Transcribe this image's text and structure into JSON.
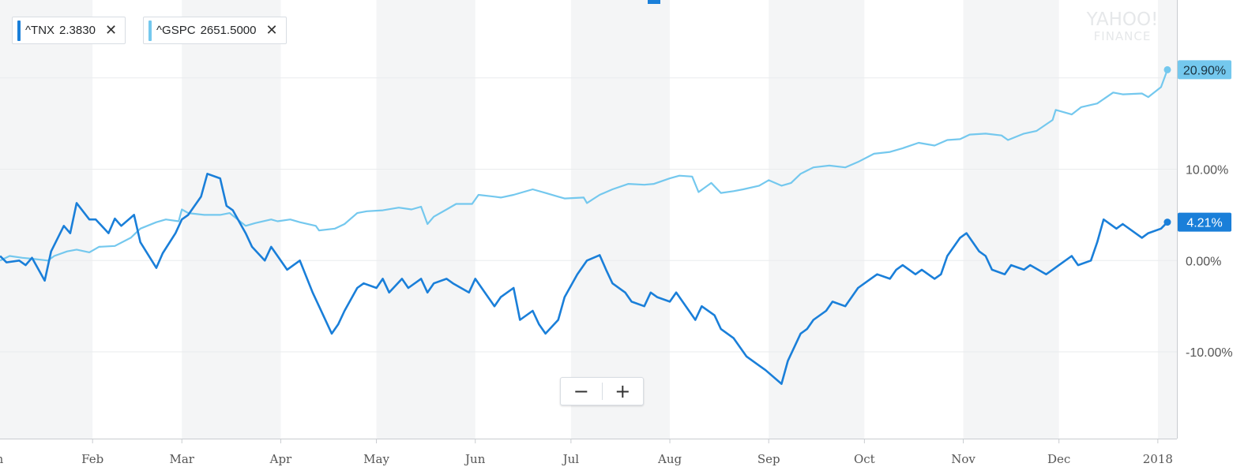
{
  "watermark": {
    "line1": "YAHOO!",
    "line2": "FINANCE"
  },
  "chips": [
    {
      "symbol": "^TNX",
      "price": "2.3830",
      "color": "#1a7fd9",
      "close_icon": "close-icon"
    },
    {
      "symbol": "^GSPC",
      "price": "2651.5000",
      "color": "#74c8ee",
      "close_icon": "close-icon"
    }
  ],
  "zoom": {
    "out_label": "−",
    "in_label": "+",
    "out_icon": "minus-icon",
    "in_icon": "plus-icon"
  },
  "colors": {
    "tnx": "#1a7fd9",
    "gspc": "#74c8ee",
    "band": "#f4f5f6",
    "grid": "#e9ebed",
    "axis_text": "#555555",
    "accent_top": "#1a7fd9"
  },
  "chart_data": {
    "type": "line",
    "x_range": [
      "2017-01-01",
      "2018-01-05"
    ],
    "ylim": [
      -19.5,
      27.5
    ],
    "y_ticks": [
      0,
      10,
      -10
    ],
    "y_tick_labels": [
      "0.00%",
      "10.00%",
      "-10.00%"
    ],
    "x_ticks": [
      {
        "date": "2017-01-01",
        "label": "Jan"
      },
      {
        "date": "2017-02-01",
        "label": "Feb"
      },
      {
        "date": "2017-03-01",
        "label": "Mar"
      },
      {
        "date": "2017-04-01",
        "label": "Apr"
      },
      {
        "date": "2017-05-01",
        "label": "May"
      },
      {
        "date": "2017-06-01",
        "label": "Jun"
      },
      {
        "date": "2017-07-01",
        "label": "Jul"
      },
      {
        "date": "2017-08-01",
        "label": "Aug"
      },
      {
        "date": "2017-09-01",
        "label": "Sep"
      },
      {
        "date": "2017-10-01",
        "label": "Oct"
      },
      {
        "date": "2017-11-01",
        "label": "Nov"
      },
      {
        "date": "2017-12-01",
        "label": "Dec"
      },
      {
        "date": "2018-01-01",
        "label": "2018"
      }
    ],
    "series": [
      {
        "name": "^TNX",
        "last_label": "4.21%",
        "points": [
          [
            "2017-01-03",
            0.5
          ],
          [
            "2017-01-05",
            -0.2
          ],
          [
            "2017-01-09",
            0.0
          ],
          [
            "2017-01-11",
            -0.5
          ],
          [
            "2017-01-13",
            0.3
          ],
          [
            "2017-01-17",
            -2.2
          ],
          [
            "2017-01-19",
            1.0
          ],
          [
            "2017-01-23",
            3.8
          ],
          [
            "2017-01-25",
            3.0
          ],
          [
            "2017-01-27",
            6.3
          ],
          [
            "2017-01-31",
            4.5
          ],
          [
            "2017-02-02",
            4.5
          ],
          [
            "2017-02-06",
            3.0
          ],
          [
            "2017-02-08",
            4.6
          ],
          [
            "2017-02-10",
            3.8
          ],
          [
            "2017-02-14",
            5.0
          ],
          [
            "2017-02-16",
            2.0
          ],
          [
            "2017-02-21",
            -0.8
          ],
          [
            "2017-02-23",
            0.8
          ],
          [
            "2017-02-27",
            3.0
          ],
          [
            "2017-03-01",
            4.5
          ],
          [
            "2017-03-03",
            5.0
          ],
          [
            "2017-03-07",
            7.0
          ],
          [
            "2017-03-09",
            9.5
          ],
          [
            "2017-03-13",
            9.0
          ],
          [
            "2017-03-15",
            6.0
          ],
          [
            "2017-03-17",
            5.5
          ],
          [
            "2017-03-21",
            3.0
          ],
          [
            "2017-03-23",
            1.5
          ],
          [
            "2017-03-27",
            0.0
          ],
          [
            "2017-03-29",
            1.5
          ],
          [
            "2017-04-03",
            -1.0
          ],
          [
            "2017-04-05",
            -0.5
          ],
          [
            "2017-04-07",
            0.0
          ],
          [
            "2017-04-11",
            -3.5
          ],
          [
            "2017-04-13",
            -5.0
          ],
          [
            "2017-04-17",
            -8.0
          ],
          [
            "2017-04-19",
            -7.0
          ],
          [
            "2017-04-21",
            -5.5
          ],
          [
            "2017-04-25",
            -3.0
          ],
          [
            "2017-04-27",
            -2.5
          ],
          [
            "2017-05-01",
            -3.0
          ],
          [
            "2017-05-03",
            -2.0
          ],
          [
            "2017-05-05",
            -3.5
          ],
          [
            "2017-05-09",
            -2.0
          ],
          [
            "2017-05-11",
            -3.0
          ],
          [
            "2017-05-15",
            -2.0
          ],
          [
            "2017-05-17",
            -3.5
          ],
          [
            "2017-05-19",
            -2.5
          ],
          [
            "2017-05-23",
            -2.0
          ],
          [
            "2017-05-25",
            -2.5
          ],
          [
            "2017-05-30",
            -3.5
          ],
          [
            "2017-06-01",
            -2.0
          ],
          [
            "2017-06-05",
            -4.0
          ],
          [
            "2017-06-07",
            -5.0
          ],
          [
            "2017-06-09",
            -4.0
          ],
          [
            "2017-06-13",
            -3.0
          ],
          [
            "2017-06-15",
            -6.5
          ],
          [
            "2017-06-19",
            -5.5
          ],
          [
            "2017-06-21",
            -7.0
          ],
          [
            "2017-06-23",
            -8.0
          ],
          [
            "2017-06-27",
            -6.5
          ],
          [
            "2017-06-29",
            -4.0
          ],
          [
            "2017-07-03",
            -1.5
          ],
          [
            "2017-07-06",
            0.0
          ],
          [
            "2017-07-10",
            0.6
          ],
          [
            "2017-07-12",
            -1.0
          ],
          [
            "2017-07-14",
            -2.5
          ],
          [
            "2017-07-18",
            -3.5
          ],
          [
            "2017-07-20",
            -4.5
          ],
          [
            "2017-07-24",
            -5.0
          ],
          [
            "2017-07-26",
            -3.5
          ],
          [
            "2017-07-28",
            -4.0
          ],
          [
            "2017-08-01",
            -4.5
          ],
          [
            "2017-08-03",
            -3.5
          ],
          [
            "2017-08-07",
            -5.5
          ],
          [
            "2017-08-09",
            -6.5
          ],
          [
            "2017-08-11",
            -5.0
          ],
          [
            "2017-08-15",
            -6.0
          ],
          [
            "2017-08-17",
            -7.5
          ],
          [
            "2017-08-21",
            -8.5
          ],
          [
            "2017-08-23",
            -9.5
          ],
          [
            "2017-08-25",
            -10.5
          ],
          [
            "2017-08-29",
            -11.5
          ],
          [
            "2017-08-31",
            -12.0
          ],
          [
            "2017-09-05",
            -13.5
          ],
          [
            "2017-09-07",
            -11.0
          ],
          [
            "2017-09-11",
            -8.0
          ],
          [
            "2017-09-13",
            -7.5
          ],
          [
            "2017-09-15",
            -6.5
          ],
          [
            "2017-09-19",
            -5.5
          ],
          [
            "2017-09-21",
            -4.5
          ],
          [
            "2017-09-25",
            -5.0
          ],
          [
            "2017-09-27",
            -4.0
          ],
          [
            "2017-09-29",
            -3.0
          ],
          [
            "2017-10-03",
            -2.0
          ],
          [
            "2017-10-05",
            -1.5
          ],
          [
            "2017-10-09",
            -2.0
          ],
          [
            "2017-10-11",
            -1.0
          ],
          [
            "2017-10-13",
            -0.5
          ],
          [
            "2017-10-17",
            -1.5
          ],
          [
            "2017-10-19",
            -1.0
          ],
          [
            "2017-10-23",
            -2.0
          ],
          [
            "2017-10-25",
            -1.5
          ],
          [
            "2017-10-27",
            0.5
          ],
          [
            "2017-10-31",
            2.5
          ],
          [
            "2017-11-02",
            3.0
          ],
          [
            "2017-11-06",
            1.0
          ],
          [
            "2017-11-08",
            0.5
          ],
          [
            "2017-11-10",
            -1.0
          ],
          [
            "2017-11-14",
            -1.5
          ],
          [
            "2017-11-16",
            -0.5
          ],
          [
            "2017-11-20",
            -1.0
          ],
          [
            "2017-11-22",
            -0.5
          ],
          [
            "2017-11-27",
            -1.5
          ],
          [
            "2017-11-29",
            -1.0
          ],
          [
            "2017-12-01",
            -0.5
          ],
          [
            "2017-12-05",
            0.5
          ],
          [
            "2017-12-07",
            -0.5
          ],
          [
            "2017-12-11",
            0.0
          ],
          [
            "2017-12-13",
            2.0
          ],
          [
            "2017-12-15",
            4.5
          ],
          [
            "2017-12-19",
            3.5
          ],
          [
            "2017-12-21",
            4.0
          ],
          [
            "2017-12-27",
            2.5
          ],
          [
            "2017-12-29",
            3.0
          ],
          [
            "2018-01-02",
            3.5
          ],
          [
            "2018-01-04",
            4.21
          ]
        ]
      },
      {
        "name": "^GSPC",
        "last_label": "20.90%",
        "points": [
          [
            "2017-01-03",
            0.0
          ],
          [
            "2017-01-06",
            0.5
          ],
          [
            "2017-01-10",
            0.3
          ],
          [
            "2017-01-13",
            0.2
          ],
          [
            "2017-01-18",
            0.0
          ],
          [
            "2017-01-20",
            0.5
          ],
          [
            "2017-01-24",
            1.0
          ],
          [
            "2017-01-27",
            1.2
          ],
          [
            "2017-01-31",
            0.9
          ],
          [
            "2017-02-03",
            1.5
          ],
          [
            "2017-02-08",
            1.6
          ],
          [
            "2017-02-13",
            2.5
          ],
          [
            "2017-02-16",
            3.5
          ],
          [
            "2017-02-21",
            4.2
          ],
          [
            "2017-02-24",
            4.5
          ],
          [
            "2017-02-28",
            4.3
          ],
          [
            "2017-03-01",
            5.6
          ],
          [
            "2017-03-03",
            5.2
          ],
          [
            "2017-03-08",
            5.0
          ],
          [
            "2017-03-13",
            5.0
          ],
          [
            "2017-03-16",
            5.2
          ],
          [
            "2017-03-21",
            3.8
          ],
          [
            "2017-03-24",
            4.1
          ],
          [
            "2017-03-29",
            4.5
          ],
          [
            "2017-03-31",
            4.3
          ],
          [
            "2017-04-04",
            4.5
          ],
          [
            "2017-04-07",
            4.2
          ],
          [
            "2017-04-12",
            3.8
          ],
          [
            "2017-04-13",
            3.3
          ],
          [
            "2017-04-18",
            3.5
          ],
          [
            "2017-04-21",
            4.0
          ],
          [
            "2017-04-25",
            5.2
          ],
          [
            "2017-04-28",
            5.4
          ],
          [
            "2017-05-03",
            5.5
          ],
          [
            "2017-05-08",
            5.8
          ],
          [
            "2017-05-12",
            5.6
          ],
          [
            "2017-05-15",
            5.9
          ],
          [
            "2017-05-17",
            4.0
          ],
          [
            "2017-05-19",
            4.8
          ],
          [
            "2017-05-23",
            5.6
          ],
          [
            "2017-05-26",
            6.2
          ],
          [
            "2017-05-31",
            6.2
          ],
          [
            "2017-06-02",
            7.2
          ],
          [
            "2017-06-07",
            7.0
          ],
          [
            "2017-06-09",
            6.9
          ],
          [
            "2017-06-13",
            7.2
          ],
          [
            "2017-06-19",
            7.8
          ],
          [
            "2017-06-23",
            7.4
          ],
          [
            "2017-06-27",
            7.0
          ],
          [
            "2017-06-29",
            6.8
          ],
          [
            "2017-07-05",
            6.9
          ],
          [
            "2017-07-06",
            6.3
          ],
          [
            "2017-07-10",
            7.2
          ],
          [
            "2017-07-14",
            7.8
          ],
          [
            "2017-07-19",
            8.4
          ],
          [
            "2017-07-24",
            8.3
          ],
          [
            "2017-07-27",
            8.4
          ],
          [
            "2017-08-01",
            9.0
          ],
          [
            "2017-08-04",
            9.3
          ],
          [
            "2017-08-08",
            9.2
          ],
          [
            "2017-08-10",
            7.5
          ],
          [
            "2017-08-14",
            8.5
          ],
          [
            "2017-08-17",
            7.4
          ],
          [
            "2017-08-21",
            7.6
          ],
          [
            "2017-08-24",
            7.8
          ],
          [
            "2017-08-29",
            8.2
          ],
          [
            "2017-09-01",
            8.8
          ],
          [
            "2017-09-05",
            8.2
          ],
          [
            "2017-09-08",
            8.5
          ],
          [
            "2017-09-11",
            9.5
          ],
          [
            "2017-09-15",
            10.2
          ],
          [
            "2017-09-20",
            10.4
          ],
          [
            "2017-09-25",
            10.2
          ],
          [
            "2017-09-29",
            10.8
          ],
          [
            "2017-10-04",
            11.7
          ],
          [
            "2017-10-09",
            11.9
          ],
          [
            "2017-10-13",
            12.3
          ],
          [
            "2017-10-18",
            12.9
          ],
          [
            "2017-10-23",
            12.6
          ],
          [
            "2017-10-27",
            13.2
          ],
          [
            "2017-10-31",
            13.3
          ],
          [
            "2017-11-03",
            13.8
          ],
          [
            "2017-11-08",
            13.9
          ],
          [
            "2017-11-13",
            13.7
          ],
          [
            "2017-11-15",
            13.2
          ],
          [
            "2017-11-20",
            13.9
          ],
          [
            "2017-11-24",
            14.2
          ],
          [
            "2017-11-29",
            15.4
          ],
          [
            "2017-11-30",
            16.5
          ],
          [
            "2017-12-05",
            16.0
          ],
          [
            "2017-12-08",
            16.8
          ],
          [
            "2017-12-13",
            17.2
          ],
          [
            "2017-12-18",
            18.4
          ],
          [
            "2017-12-21",
            18.2
          ],
          [
            "2017-12-27",
            18.3
          ],
          [
            "2017-12-29",
            17.9
          ],
          [
            "2018-01-02",
            19.0
          ],
          [
            "2018-01-04",
            20.9
          ]
        ]
      }
    ]
  }
}
